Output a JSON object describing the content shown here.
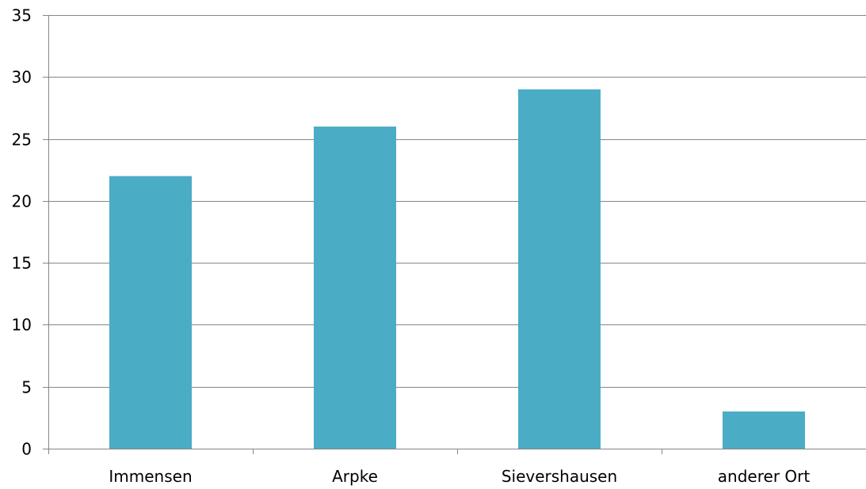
{
  "chart_data": {
    "type": "bar",
    "title": "",
    "xlabel": "",
    "ylabel": "",
    "categories": [
      "Immensen",
      "Arpke",
      "Sievershausen",
      "anderer Ort"
    ],
    "values": [
      22,
      26,
      29,
      3
    ],
    "ylim": [
      0,
      35
    ],
    "yticks": [
      0,
      5,
      10,
      15,
      20,
      25,
      30,
      35
    ],
    "ytick_labels": [
      "0",
      "5",
      "10",
      "15",
      "20",
      "25",
      "30",
      "35"
    ],
    "grid": "horizontal",
    "legend": "none",
    "colors": {
      "bar": "#4BACC6",
      "grid": "#868686",
      "axis": "#868686"
    }
  }
}
